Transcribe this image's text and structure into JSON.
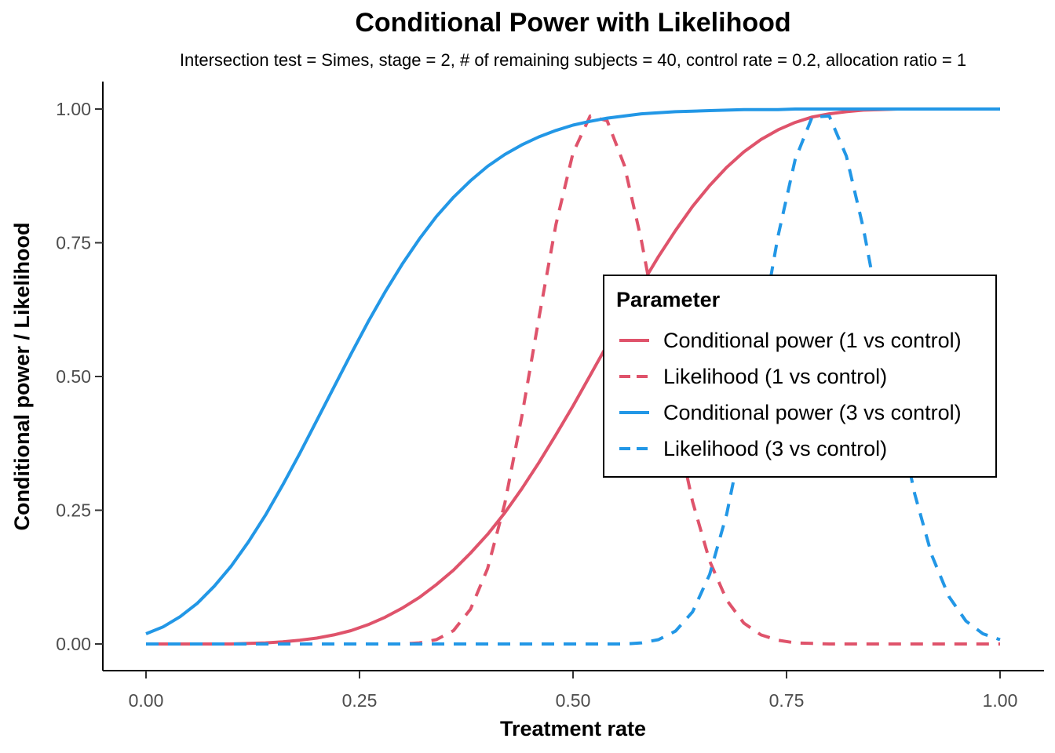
{
  "chart_data": {
    "type": "line",
    "title": "Conditional Power with Likelihood",
    "subtitle": "Intersection test = Simes, stage = 2, # of remaining subjects = 40, control rate = 0.2, allocation ratio = 1",
    "xlabel": "Treatment rate",
    "ylabel": "Conditional power / Likelihood",
    "xlim": [
      0,
      1
    ],
    "ylim": [
      0,
      1
    ],
    "x_ticks": [
      "0.00",
      "0.25",
      "0.50",
      "0.75",
      "1.00"
    ],
    "y_ticks": [
      "0.00",
      "0.25",
      "0.50",
      "0.75",
      "1.00"
    ],
    "grid": false,
    "legend": {
      "title": "Parameter",
      "placement": "right-center"
    },
    "x": [
      0.0,
      0.02,
      0.04,
      0.06,
      0.08,
      0.1,
      0.12,
      0.14,
      0.16,
      0.18,
      0.2,
      0.22,
      0.24,
      0.26,
      0.28,
      0.3,
      0.32,
      0.34,
      0.36,
      0.38,
      0.4,
      0.42,
      0.44,
      0.46,
      0.48,
      0.5,
      0.52,
      0.54,
      0.56,
      0.58,
      0.6,
      0.62,
      0.64,
      0.66,
      0.68,
      0.7,
      0.72,
      0.74,
      0.76,
      0.78,
      0.8,
      0.82,
      0.84,
      0.86,
      0.88,
      0.9,
      0.92,
      0.94,
      0.96,
      0.98,
      1.0
    ],
    "series": [
      {
        "name": "Conditional power (1 vs control)",
        "color": "#df536b",
        "dash": "solid",
        "values": [
          0.0,
          0.0,
          0.0,
          0.0,
          0.0,
          0.0,
          0.001,
          0.002,
          0.004,
          0.007,
          0.011,
          0.017,
          0.025,
          0.036,
          0.05,
          0.067,
          0.087,
          0.111,
          0.138,
          0.17,
          0.205,
          0.245,
          0.29,
          0.339,
          0.391,
          0.445,
          0.502,
          0.559,
          0.616,
          0.671,
          0.724,
          0.773,
          0.818,
          0.857,
          0.891,
          0.92,
          0.943,
          0.961,
          0.975,
          0.985,
          0.991,
          0.995,
          0.998,
          0.999,
          1.0,
          1.0,
          1.0,
          1.0,
          1.0,
          1.0,
          1.0
        ]
      },
      {
        "name": "Likelihood (1 vs control)",
        "color": "#df536b",
        "dash": "dashed",
        "values": [
          0.0,
          0.0,
          0.0,
          0.0,
          0.0,
          0.0,
          0.0,
          0.0,
          0.0,
          0.0,
          0.0,
          0.0,
          0.0,
          0.0,
          0.0,
          0.0,
          0.002,
          0.008,
          0.025,
          0.065,
          0.141,
          0.262,
          0.425,
          0.609,
          0.784,
          0.918,
          0.987,
          0.978,
          0.895,
          0.755,
          0.585,
          0.414,
          0.266,
          0.155,
          0.082,
          0.039,
          0.017,
          0.007,
          0.002,
          0.001,
          0.0,
          0.0,
          0.0,
          0.0,
          0.0,
          0.0,
          0.0,
          0.0,
          0.0,
          0.0,
          0.0
        ]
      },
      {
        "name": "Conditional power (3 vs control)",
        "color": "#2297e6",
        "dash": "solid",
        "values": [
          0.019,
          0.032,
          0.051,
          0.076,
          0.108,
          0.146,
          0.191,
          0.241,
          0.297,
          0.356,
          0.418,
          0.48,
          0.542,
          0.602,
          0.658,
          0.71,
          0.757,
          0.799,
          0.835,
          0.866,
          0.893,
          0.915,
          0.933,
          0.948,
          0.96,
          0.97,
          0.977,
          0.983,
          0.987,
          0.991,
          0.993,
          0.995,
          0.996,
          0.997,
          0.998,
          0.999,
          0.999,
          0.999,
          1.0,
          1.0,
          1.0,
          1.0,
          1.0,
          1.0,
          1.0,
          1.0,
          1.0,
          1.0,
          1.0,
          1.0,
          1.0
        ]
      },
      {
        "name": "Likelihood (3 vs control)",
        "color": "#2297e6",
        "dash": "dashed",
        "values": [
          0.0,
          0.0,
          0.0,
          0.0,
          0.0,
          0.0,
          0.0,
          0.0,
          0.0,
          0.0,
          0.0,
          0.0,
          0.0,
          0.0,
          0.0,
          0.0,
          0.0,
          0.0,
          0.0,
          0.0,
          0.0,
          0.0,
          0.0,
          0.0,
          0.0,
          0.0,
          0.0,
          0.0,
          0.0,
          0.002,
          0.008,
          0.024,
          0.06,
          0.13,
          0.243,
          0.399,
          0.582,
          0.762,
          0.905,
          0.985,
          0.987,
          0.912,
          0.777,
          0.607,
          0.433,
          0.281,
          0.166,
          0.089,
          0.043,
          0.019,
          0.008
        ]
      }
    ]
  }
}
